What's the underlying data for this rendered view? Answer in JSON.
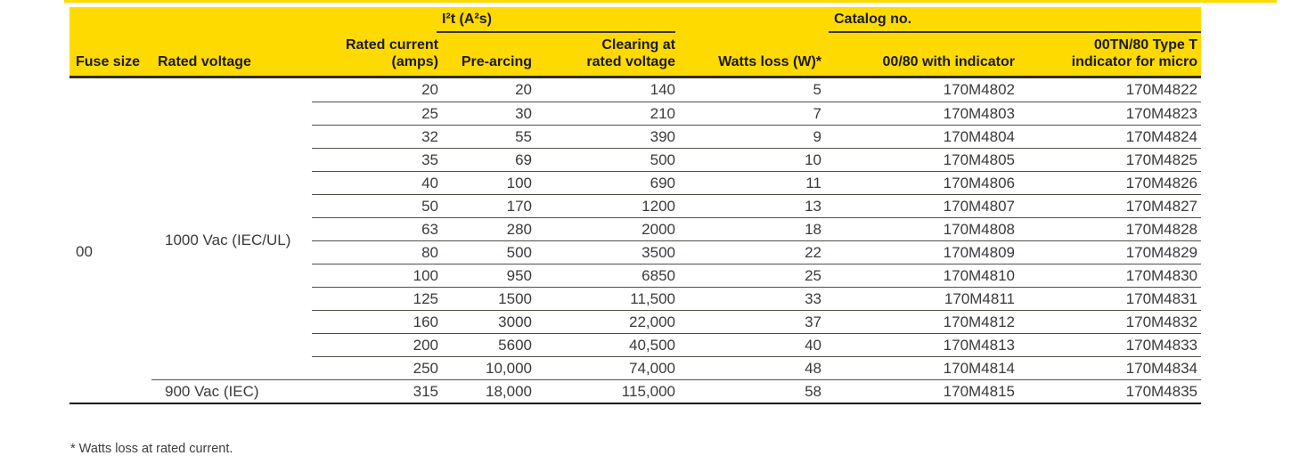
{
  "colors": {
    "brand_yellow": "#ffda00",
    "header_text": "#1a1a1a",
    "body_text": "#3a3a3a",
    "header_rule": "#332f1a",
    "row_divider": "#514f47"
  },
  "table": {
    "group_headers": {
      "i2t": "I²t (A²s)",
      "catalog": "Catalog no."
    },
    "columns": {
      "fuse_size": "Fuse size",
      "rated_voltage": "Rated voltage",
      "rated_current": "Rated current\n(amps)",
      "pre_arcing": "Pre-arcing",
      "clearing": "Clearing at\nrated voltage",
      "watts_loss": "Watts loss (W)*",
      "cat_indicator": "00/80 with indicator",
      "cat_micro": "00TN/80 Type T\nindicator for micro"
    },
    "fuse_size_value": "00",
    "voltage_group_value": "1000 Vac (IEC/UL)",
    "rows": [
      {
        "voltage": "",
        "current": "20",
        "pre_arcing": "20",
        "clearing": "140",
        "watts": "5",
        "cat1": "170M4802",
        "cat2": "170M4822"
      },
      {
        "voltage": "",
        "current": "25",
        "pre_arcing": "30",
        "clearing": "210",
        "watts": "7",
        "cat1": "170M4803",
        "cat2": "170M4823"
      },
      {
        "voltage": "",
        "current": "32",
        "pre_arcing": "55",
        "clearing": "390",
        "watts": "9",
        "cat1": "170M4804",
        "cat2": "170M4824"
      },
      {
        "voltage": "",
        "current": "35",
        "pre_arcing": "69",
        "clearing": "500",
        "watts": "10",
        "cat1": "170M4805",
        "cat2": "170M4825"
      },
      {
        "voltage": "",
        "current": "40",
        "pre_arcing": "100",
        "clearing": "690",
        "watts": "11",
        "cat1": "170M4806",
        "cat2": "170M4826"
      },
      {
        "voltage": "",
        "current": "50",
        "pre_arcing": "170",
        "clearing": "1200",
        "watts": "13",
        "cat1": "170M4807",
        "cat2": "170M4827"
      },
      {
        "voltage": "",
        "current": "63",
        "pre_arcing": "280",
        "clearing": "2000",
        "watts": "18",
        "cat1": "170M4808",
        "cat2": "170M4828"
      },
      {
        "voltage": "",
        "current": "80",
        "pre_arcing": "500",
        "clearing": "3500",
        "watts": "22",
        "cat1": "170M4809",
        "cat2": "170M4829"
      },
      {
        "voltage": "",
        "current": "100",
        "pre_arcing": "950",
        "clearing": "6850",
        "watts": "25",
        "cat1": "170M4810",
        "cat2": "170M4830"
      },
      {
        "voltage": "",
        "current": "125",
        "pre_arcing": "1500",
        "clearing": "11,500",
        "watts": "33",
        "cat1": "170M4811",
        "cat2": "170M4831"
      },
      {
        "voltage": "",
        "current": "160",
        "pre_arcing": "3000",
        "clearing": "22,000",
        "watts": "37",
        "cat1": "170M4812",
        "cat2": "170M4832"
      },
      {
        "voltage": "",
        "current": "200",
        "pre_arcing": "5600",
        "clearing": "40,500",
        "watts": "40",
        "cat1": "170M4813",
        "cat2": "170M4833"
      },
      {
        "voltage": "",
        "current": "250",
        "pre_arcing": "10,000",
        "clearing": "74,000",
        "watts": "48",
        "cat1": "170M4814",
        "cat2": "170M4834"
      },
      {
        "voltage": "",
        "current": "315",
        "pre_arcing": "18,000",
        "clearing": "115,000",
        "watts": "58",
        "cat1": "170M4815",
        "cat2": "170M4835"
      }
    ],
    "last_row_voltage": "900 Vac (IEC)"
  },
  "footnote": "* Watts loss at rated current."
}
